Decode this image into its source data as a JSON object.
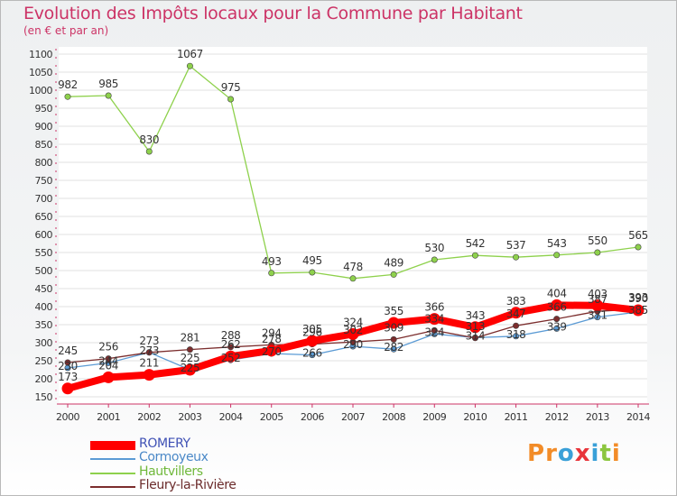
{
  "chart_data": {
    "type": "line",
    "title": "Evolution des Impôts locaux pour la Commune par Habitant",
    "subtitle": "(en € et par an)",
    "xlabel": "",
    "ylabel": "",
    "ylim": [
      150,
      1100
    ],
    "yticks": [
      150,
      200,
      250,
      300,
      350,
      400,
      450,
      500,
      550,
      600,
      650,
      700,
      750,
      800,
      850,
      900,
      950,
      1000,
      1050,
      1100
    ],
    "categories": [
      "2000",
      "2001",
      "2002",
      "2003",
      "2004",
      "2005",
      "2006",
      "2007",
      "2008",
      "2009",
      "2010",
      "2011",
      "2012",
      "2013",
      "2014"
    ],
    "series": [
      {
        "name": "ROMERY",
        "color": "#ff0000",
        "labels": true,
        "values": [
          173,
          204,
          211,
          225,
          262,
          278,
          305,
          324,
          355,
          366,
          343,
          383,
          404,
          403,
          390
        ]
      },
      {
        "name": "Cormoyeux",
        "color": "#5b9bd5",
        "labels": false,
        "values": [
          230,
          244,
          273,
          225,
          252,
          270,
          266,
          290,
          282,
          324,
          314,
          318,
          339,
          371,
          385
        ]
      },
      {
        "name": "Hautvillers",
        "color": "#8ed14c",
        "labels": true,
        "values": [
          982,
          985,
          830,
          1067,
          975,
          493,
          495,
          478,
          489,
          530,
          542,
          537,
          543,
          550,
          565
        ]
      },
      {
        "name": "Fleury-la-Rivière",
        "color": "#7b2d2d",
        "labels": true,
        "values": [
          245,
          256,
          273,
          281,
          288,
          294,
          296,
          302,
          309,
          334,
          313,
          347,
          366,
          387,
          393
        ]
      }
    ],
    "extra_labels": [
      {
        "x": "2000",
        "text": "230"
      },
      {
        "x": "2001",
        "text": "244"
      },
      {
        "x": "2002",
        "text": "273"
      },
      {
        "x": "2003",
        "text": "225"
      },
      {
        "x": "2004",
        "text": "252"
      },
      {
        "x": "2005",
        "text": "270"
      },
      {
        "x": "2006",
        "text": "266"
      },
      {
        "x": "2007",
        "text": "290"
      },
      {
        "x": "2008",
        "text": "282"
      },
      {
        "x": "2009",
        "text": "324"
      },
      {
        "x": "2010",
        "text": "314"
      },
      {
        "x": "2011",
        "text": "318"
      },
      {
        "x": "2012",
        "text": "339"
      },
      {
        "x": "2013",
        "text": "371"
      },
      {
        "x": "2014",
        "text": "385"
      }
    ]
  },
  "legend": [
    {
      "label": "ROMERY",
      "color": "#ff0000"
    },
    {
      "label": "Cormoyeux",
      "color": "#5b9bd5"
    },
    {
      "label": "Hautvillers",
      "color": "#8ed14c"
    },
    {
      "label": "Fleury-la-Rivière",
      "color": "#7b2d2d"
    }
  ],
  "logo": {
    "text": "Proxiti",
    "letters": [
      "P",
      "r",
      "o",
      "x",
      "i",
      "t",
      "i"
    ],
    "colors": [
      "#f28c28",
      "#f28c28",
      "#3aa0d8",
      "#e8353b",
      "#3aa0d8",
      "#8cc63f",
      "#f28c28"
    ]
  }
}
